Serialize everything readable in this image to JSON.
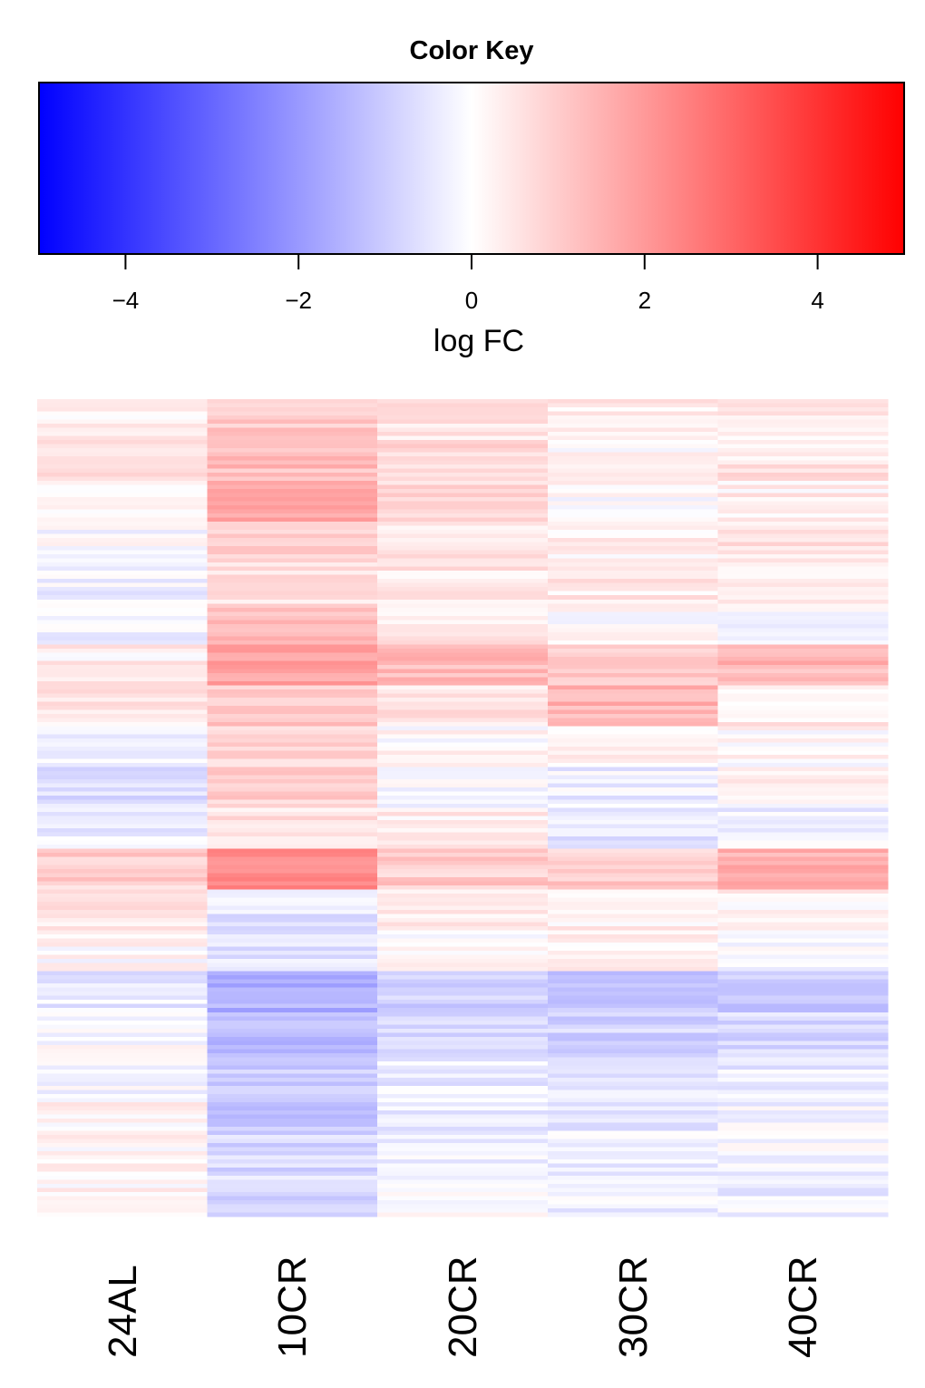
{
  "chart_data": [
    {
      "type": "colorbar",
      "title": "Color Key",
      "xlabel": "log FC",
      "range": [
        -5,
        5
      ],
      "ticks": [
        "−4",
        "−2",
        "0",
        "2",
        "4"
      ],
      "tick_values": [
        -4,
        -2,
        0,
        2,
        4
      ],
      "colors": {
        "low": "#0000ff",
        "mid": "#ffffff",
        "high": "#ff0000"
      }
    },
    {
      "type": "heatmap",
      "columns": [
        "24AL",
        "10CR",
        "20CR",
        "30CR",
        "40CR"
      ],
      "value_range": [
        -5,
        5
      ],
      "row_blocks": [
        {
          "rows": 10,
          "values": [
            0.3,
            1.0,
            0.5,
            0.3,
            0.4
          ]
        },
        {
          "rows": 10,
          "values": [
            0.6,
            1.3,
            0.7,
            0.2,
            0.5
          ]
        },
        {
          "rows": 10,
          "values": [
            0.2,
            1.6,
            0.8,
            0.1,
            0.3
          ]
        },
        {
          "rows": 10,
          "values": [
            -0.1,
            1.0,
            0.6,
            0.3,
            0.5
          ]
        },
        {
          "rows": 10,
          "values": [
            -0.3,
            0.5,
            0.5,
            0.4,
            0.2
          ]
        },
        {
          "rows": 10,
          "values": [
            -0.2,
            1.2,
            0.4,
            0.1,
            -0.1
          ]
        },
        {
          "rows": 10,
          "values": [
            0.3,
            1.9,
            1.3,
            0.9,
            1.4
          ]
        },
        {
          "rows": 10,
          "values": [
            0.5,
            1.1,
            0.6,
            1.5,
            0.4
          ]
        },
        {
          "rows": 10,
          "values": [
            -0.4,
            0.8,
            0.1,
            0.2,
            0.1
          ]
        },
        {
          "rows": 10,
          "values": [
            -0.6,
            0.9,
            0.0,
            -0.3,
            0.2
          ]
        },
        {
          "rows": 10,
          "values": [
            -0.3,
            0.6,
            0.3,
            -0.5,
            -0.3
          ]
        },
        {
          "rows": 10,
          "values": [
            0.9,
            2.2,
            1.0,
            1.0,
            1.5
          ]
        },
        {
          "rows": 10,
          "values": [
            0.4,
            -0.5,
            0.3,
            0.3,
            0.2
          ]
        },
        {
          "rows": 10,
          "values": [
            0.1,
            -0.6,
            0.1,
            0.2,
            0.0
          ]
        },
        {
          "rows": 10,
          "values": [
            -0.4,
            -1.5,
            -0.9,
            -1.0,
            -1.0
          ]
        },
        {
          "rows": 10,
          "values": [
            0.0,
            -1.3,
            -0.7,
            -0.8,
            -0.7
          ]
        },
        {
          "rows": 10,
          "values": [
            -0.2,
            -1.0,
            -0.4,
            -0.5,
            -0.4
          ]
        },
        {
          "rows": 10,
          "values": [
            0.2,
            -1.1,
            -0.3,
            -0.4,
            -0.2
          ]
        },
        {
          "rows": 10,
          "values": [
            0.1,
            -0.8,
            -0.2,
            -0.3,
            -0.2
          ]
        },
        {
          "rows": 10,
          "values": [
            0.2,
            -0.7,
            -0.1,
            -0.3,
            -0.3
          ]
        }
      ]
    }
  ]
}
